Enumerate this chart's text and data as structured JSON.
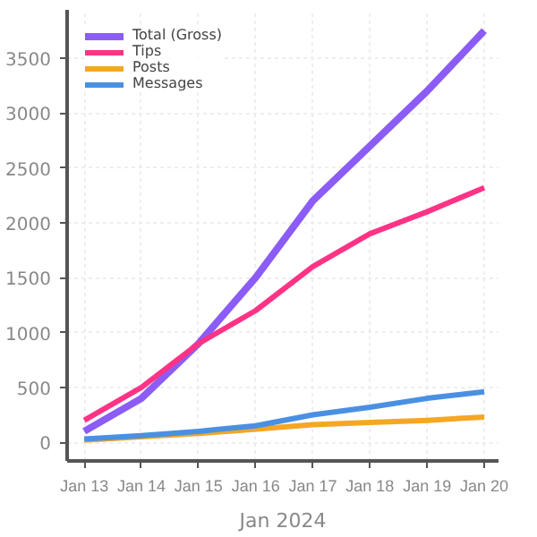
{
  "chart_data": {
    "type": "line",
    "xlabel": "Jan 2024",
    "x": [
      "2024-01-13",
      "2024-01-14",
      "2024-01-15",
      "2024-01-16",
      "2024-01-17",
      "2024-01-18",
      "2024-01-19",
      "2024-01-20"
    ],
    "series": [
      {
        "name": "Total (Gross)",
        "color": "#8b5cf6",
        "values": [
          100,
          400,
          900,
          1500,
          2200,
          2700,
          3200,
          3750
        ]
      },
      {
        "name": "Tips",
        "color": "#ff3385",
        "values": [
          200,
          500,
          900,
          1200,
          1600,
          1900,
          2100,
          2320
        ]
      },
      {
        "name": "Posts",
        "color": "#f5a623",
        "values": [
          20,
          50,
          80,
          120,
          160,
          180,
          200,
          230
        ]
      },
      {
        "name": "Messages",
        "color": "#4a90e2",
        "values": [
          30,
          60,
          100,
          150,
          250,
          320,
          400,
          460
        ]
      }
    ],
    "xlim": [
      "2024-01-12T16:48",
      "2024-01-20T06:00"
    ],
    "xticks": [
      {
        "value": "2024-01-13",
        "label": "Jan 13"
      },
      {
        "value": "2024-01-14",
        "label": "Jan 14"
      },
      {
        "value": "2024-01-15",
        "label": "Jan 15"
      },
      {
        "value": "2024-01-16",
        "label": "Jan 16"
      },
      {
        "value": "2024-01-17",
        "label": "Jan 17"
      },
      {
        "value": "2024-01-18",
        "label": "Jan 18"
      },
      {
        "value": "2024-01-19",
        "label": "Jan 19"
      },
      {
        "value": "2024-01-20",
        "label": "Jan 20"
      }
    ],
    "ylim": [
      -170,
      3940
    ],
    "yticks": [
      0,
      500,
      1000,
      1500,
      2000,
      2500,
      3000,
      3500
    ],
    "grid": true,
    "legend": "top left",
    "line_style": "solid"
  }
}
